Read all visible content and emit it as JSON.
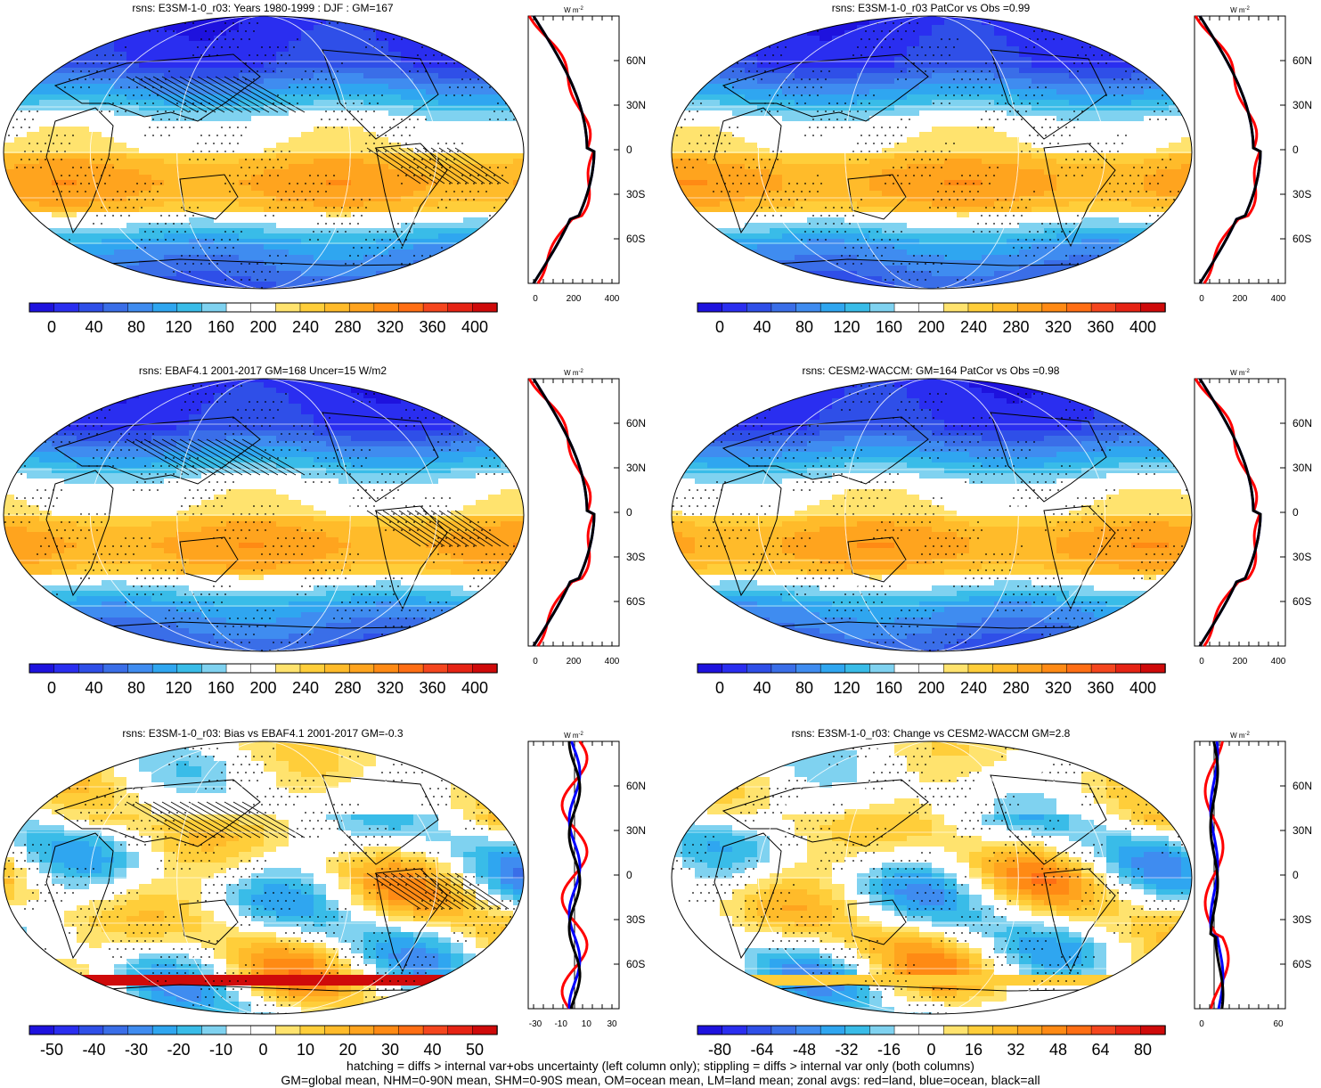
{
  "panels": [
    {
      "title": "rsns: E3SM-1-0_r03: Years 1980-1999 : DJF : GM=167",
      "kind": "abs",
      "hatch": true
    },
    {
      "title": "rsns: E3SM-1-0_r03 PatCor vs Obs =0.99",
      "kind": "abs",
      "hatch": false
    },
    {
      "title": "rsns: EBAF4.1 2001-2017 GM=168 Uncer=15 W/m2",
      "kind": "abs",
      "hatch": true
    },
    {
      "title": "rsns: CESM2-WACCM: GM=164 PatCor vs Obs =0.98",
      "kind": "abs",
      "hatch": false
    },
    {
      "title": "rsns: E3SM-1-0_r03: Bias vs EBAF4.1 2001-2017 GM=-0.3",
      "kind": "bias",
      "hatch": true
    },
    {
      "title": "rsns: E3SM-1-0_r03: Change vs CESM2-WACCM GM=2.8",
      "kind": "change",
      "hatch": false
    }
  ],
  "colorbars": {
    "abs": {
      "labels": [
        "0",
        "40",
        "80",
        "120",
        "160",
        "200",
        "240",
        "280",
        "320",
        "360",
        "400"
      ]
    },
    "bias": {
      "labels": [
        "-50",
        "-40",
        "-30",
        "-20",
        "-10",
        "0",
        "10",
        "20",
        "30",
        "40",
        "50"
      ]
    },
    "change": {
      "labels": [
        "-80",
        "-64",
        "-48",
        "-32",
        "-16",
        "0",
        "16",
        "32",
        "48",
        "64",
        "80"
      ]
    }
  },
  "zonal": {
    "unit": "W m",
    "unit_sup": "-2",
    "lat_labels": [
      "60N",
      "30N",
      "0",
      "30S",
      "60S"
    ],
    "abs_x_ticks": [
      "0",
      "200",
      "400"
    ],
    "bias_x_ticks": [
      "-30",
      "-10",
      "10",
      "30"
    ],
    "change_x_ticks": [
      "0",
      "60"
    ],
    "line_colors": {
      "land": "#ff0000",
      "ocean": "#0000ff",
      "all": "#000000"
    }
  },
  "footer": {
    "line1": "hatching = diffs > internal var+obs uncertainty (left column only); stippling = diffs > internal var only (both columns)",
    "line2": "GM=global mean, NHM=0-90N mean, SHM=0-90S mean, OM=ocean mean, LM=land mean; zonal avgs: red=land, blue=ocean, black=all"
  },
  "colors": {
    "abs_palette": [
      "#1e12de",
      "#2a2ef0",
      "#2f4fe8",
      "#3a6ee8",
      "#3f8cf0",
      "#2fa6f0",
      "#39bce8",
      "#7fd2f0",
      "#ffffff",
      "#ffffff",
      "#ffe36e",
      "#ffce3a",
      "#ffbb2a",
      "#ffa41e",
      "#ff8a14",
      "#ff6e14",
      "#f5461e",
      "#e62314",
      "#cf0a0a"
    ],
    "div_palette": [
      "#1e12de",
      "#2a2ef0",
      "#2f4fe8",
      "#3a6ee8",
      "#3f8cf0",
      "#2fa6f0",
      "#39bce8",
      "#7fd2f0",
      "#ffffff",
      "#ffffff",
      "#ffe36e",
      "#ffce3a",
      "#ffbb2a",
      "#ffa41e",
      "#ff8a14",
      "#ff6e14",
      "#f5461e",
      "#e62314",
      "#cf0a0a"
    ]
  }
}
